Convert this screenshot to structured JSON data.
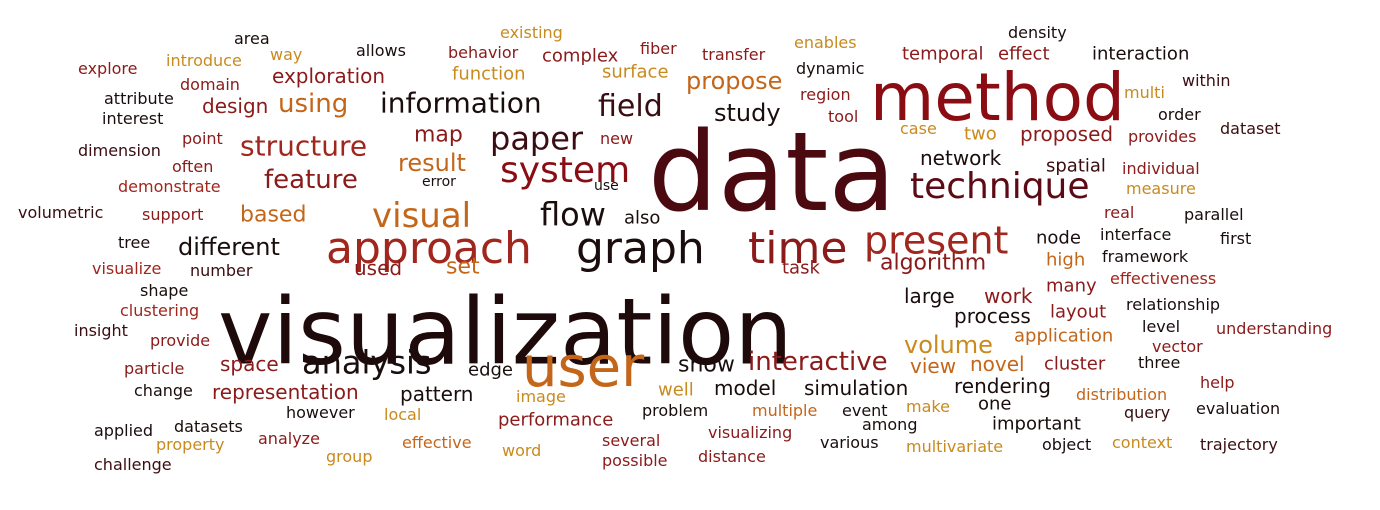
{
  "colors": {
    "black": "#1a0d0d",
    "darkbrown": "#3a0d12",
    "maroon": "#5c0a14",
    "red": "#8b1a1a",
    "crimson": "#a0261e",
    "orange": "#c4661a",
    "amber": "#c98a1e"
  },
  "words": [
    {
      "text": "data",
      "size": 110,
      "color": "#4a0a10"
    },
    {
      "text": "visualization",
      "size": 92,
      "color": "#1e0a0a"
    },
    {
      "text": "method",
      "size": 66,
      "color": "#8b0d14"
    },
    {
      "text": "user",
      "size": 56,
      "color": "#c4661a"
    },
    {
      "text": "approach",
      "size": 44,
      "color": "#a0261e"
    },
    {
      "text": "graph",
      "size": 44,
      "color": "#1a0d0d"
    },
    {
      "text": "time",
      "size": 44,
      "color": "#8b1a1a"
    },
    {
      "text": "present",
      "size": 38,
      "color": "#a0261e"
    },
    {
      "text": "technique",
      "size": 36,
      "color": "#5c0a14"
    },
    {
      "text": "system",
      "size": 36,
      "color": "#8b0d14"
    },
    {
      "text": "visual",
      "size": 34,
      "color": "#c4661a"
    },
    {
      "text": "paper",
      "size": 32,
      "color": "#3a0d12"
    },
    {
      "text": "analysis",
      "size": 32,
      "color": "#1a0d0d"
    },
    {
      "text": "flow",
      "size": 32,
      "color": "#1a0d0d"
    },
    {
      "text": "field",
      "size": 30,
      "color": "#3a0d12"
    },
    {
      "text": "information",
      "size": 28,
      "color": "#1a0d0d"
    },
    {
      "text": "structure",
      "size": 28,
      "color": "#a0261e"
    },
    {
      "text": "feature",
      "size": 26,
      "color": "#8b1a1a"
    },
    {
      "text": "using",
      "size": 26,
      "color": "#c4661a"
    },
    {
      "text": "interactive",
      "size": 26,
      "color": "#8b1a1a"
    },
    {
      "text": "result",
      "size": 24,
      "color": "#c4661a"
    },
    {
      "text": "different",
      "size": 24,
      "color": "#1a0d0d"
    },
    {
      "text": "study",
      "size": 24,
      "color": "#1a0d0d"
    },
    {
      "text": "volume",
      "size": 24,
      "color": "#c98a1e"
    },
    {
      "text": "propose",
      "size": 24,
      "color": "#c4661a"
    },
    {
      "text": "based",
      "size": 22,
      "color": "#c4661a"
    },
    {
      "text": "map",
      "size": 22,
      "color": "#8b1a1a"
    },
    {
      "text": "algorithm",
      "size": 22,
      "color": "#8b1a1a"
    },
    {
      "text": "show",
      "size": 22,
      "color": "#1a0d0d"
    },
    {
      "text": "set",
      "size": 22,
      "color": "#c4661a"
    },
    {
      "text": "space",
      "size": 20,
      "color": "#8b1a1a"
    },
    {
      "text": "model",
      "size": 20,
      "color": "#1a0d0d"
    },
    {
      "text": "representation",
      "size": 20,
      "color": "#8b1a1a"
    },
    {
      "text": "exploration",
      "size": 20,
      "color": "#8b1a1a"
    },
    {
      "text": "design",
      "size": 20,
      "color": "#8b1a1a"
    },
    {
      "text": "network",
      "size": 20,
      "color": "#1a0d0d"
    },
    {
      "text": "large",
      "size": 20,
      "color": "#1a0d0d"
    },
    {
      "text": "used",
      "size": 20,
      "color": "#8b1a1a"
    },
    {
      "text": "pattern",
      "size": 20,
      "color": "#1a0d0d"
    },
    {
      "text": "simulation",
      "size": 20,
      "color": "#1a0d0d"
    },
    {
      "text": "view",
      "size": 20,
      "color": "#c4661a"
    },
    {
      "text": "novel",
      "size": 20,
      "color": "#c4661a"
    },
    {
      "text": "work",
      "size": 20,
      "color": "#8b1a1a"
    },
    {
      "text": "process",
      "size": 20,
      "color": "#1a0d0d"
    },
    {
      "text": "rendering",
      "size": 20,
      "color": "#1a0d0d"
    },
    {
      "text": "cluster",
      "size": 18,
      "color": "#8b1a1a"
    },
    {
      "text": "proposed",
      "size": 20,
      "color": "#8b1a1a"
    },
    {
      "text": "node",
      "size": 18,
      "color": "#1a0d0d"
    },
    {
      "text": "task",
      "size": 18,
      "color": "#8b1a1a"
    },
    {
      "text": "two",
      "size": 18,
      "color": "#c98a1e"
    },
    {
      "text": "function",
      "size": 18,
      "color": "#c98a1e"
    },
    {
      "text": "surface",
      "size": 18,
      "color": "#c98a1e"
    },
    {
      "text": "application",
      "size": 18,
      "color": "#c4661a"
    },
    {
      "text": "layout",
      "size": 18,
      "color": "#8b1a1a"
    },
    {
      "text": "interaction",
      "size": 18,
      "color": "#1a0d0d"
    },
    {
      "text": "dynamic",
      "size": 16,
      "color": "#1a0d0d"
    },
    {
      "text": "temporal",
      "size": 18,
      "color": "#8b1a1a"
    },
    {
      "text": "effect",
      "size": 18,
      "color": "#8b1a1a"
    },
    {
      "text": "spatial",
      "size": 18,
      "color": "#3a0d12"
    },
    {
      "text": "many",
      "size": 18,
      "color": "#8b1a1a"
    },
    {
      "text": "high",
      "size": 18,
      "color": "#c4661a"
    },
    {
      "text": "interface",
      "size": 16,
      "color": "#1a0d0d"
    },
    {
      "text": "edge",
      "size": 18,
      "color": "#1a0d0d"
    },
    {
      "text": "well",
      "size": 18,
      "color": "#c98a1e"
    },
    {
      "text": "problem",
      "size": 16,
      "color": "#1a0d0d"
    },
    {
      "text": "performance",
      "size": 18,
      "color": "#8b1a1a"
    },
    {
      "text": "multiple",
      "size": 16,
      "color": "#c4661a"
    },
    {
      "text": "event",
      "size": 16,
      "color": "#1a0d0d"
    },
    {
      "text": "one",
      "size": 18,
      "color": "#1a0d0d"
    },
    {
      "text": "important",
      "size": 18,
      "color": "#1a0d0d"
    },
    {
      "text": "distribution",
      "size": 16,
      "color": "#c4661a"
    },
    {
      "text": "new",
      "size": 16,
      "color": "#8b1a1a"
    },
    {
      "text": "complex",
      "size": 18,
      "color": "#8b1a1a"
    },
    {
      "text": "behavior",
      "size": 16,
      "color": "#8b1a1a"
    },
    {
      "text": "fiber",
      "size": 16,
      "color": "#8b1a1a"
    },
    {
      "text": "transfer",
      "size": 16,
      "color": "#8b1a1a"
    },
    {
      "text": "enables",
      "size": 16,
      "color": "#c98a1e"
    },
    {
      "text": "existing",
      "size": 16,
      "color": "#c98a1e"
    },
    {
      "text": "allows",
      "size": 16,
      "color": "#1a0d0d"
    },
    {
      "text": "area",
      "size": 16,
      "color": "#1a0d0d"
    },
    {
      "text": "way",
      "size": 16,
      "color": "#c98a1e"
    },
    {
      "text": "introduce",
      "size": 16,
      "color": "#c98a1e"
    },
    {
      "text": "domain",
      "size": 16,
      "color": "#8b1a1a"
    },
    {
      "text": "explore",
      "size": 16,
      "color": "#8b1a1a"
    },
    {
      "text": "attribute",
      "size": 16,
      "color": "#1a0d0d"
    },
    {
      "text": "interest",
      "size": 16,
      "color": "#1a0d0d"
    },
    {
      "text": "point",
      "size": 16,
      "color": "#8b1a1a"
    },
    {
      "text": "dimension",
      "size": 16,
      "color": "#3a0d12"
    },
    {
      "text": "often",
      "size": 16,
      "color": "#8b1a1a"
    },
    {
      "text": "demonstrate",
      "size": 16,
      "color": "#a0261e"
    },
    {
      "text": "error",
      "size": 14,
      "color": "#1a0d0d"
    },
    {
      "text": "use",
      "size": 14,
      "color": "#1a0d0d"
    },
    {
      "text": "also",
      "size": 18,
      "color": "#1a0d0d"
    },
    {
      "text": "volumetric",
      "size": 16,
      "color": "#3a0d12"
    },
    {
      "text": "support",
      "size": 16,
      "color": "#8b1a1a"
    },
    {
      "text": "tree",
      "size": 16,
      "color": "#1a0d0d"
    },
    {
      "text": "visualize",
      "size": 16,
      "color": "#a0261e"
    },
    {
      "text": "number",
      "size": 16,
      "color": "#3a0d12"
    },
    {
      "text": "shape",
      "size": 16,
      "color": "#1a0d0d"
    },
    {
      "text": "clustering",
      "size": 16,
      "color": "#a0261e"
    },
    {
      "text": "insight",
      "size": 16,
      "color": "#3a0d12"
    },
    {
      "text": "provide",
      "size": 16,
      "color": "#8b1a1a"
    },
    {
      "text": "particle",
      "size": 16,
      "color": "#8b1a1a"
    },
    {
      "text": "change",
      "size": 16,
      "color": "#1a0d0d"
    },
    {
      "text": "applied",
      "size": 16,
      "color": "#1a0d0d"
    },
    {
      "text": "datasets",
      "size": 16,
      "color": "#1a0d0d"
    },
    {
      "text": "property",
      "size": 16,
      "color": "#c98a1e"
    },
    {
      "text": "challenge",
      "size": 16,
      "color": "#3a0d12"
    },
    {
      "text": "analyze",
      "size": 16,
      "color": "#8b1a1a"
    },
    {
      "text": "group",
      "size": 16,
      "color": "#c98a1e"
    },
    {
      "text": "however",
      "size": 16,
      "color": "#1a0d0d"
    },
    {
      "text": "local",
      "size": 16,
      "color": "#c98a1e"
    },
    {
      "text": "effective",
      "size": 16,
      "color": "#c4661a"
    },
    {
      "text": "image",
      "size": 16,
      "color": "#c98a1e"
    },
    {
      "text": "word",
      "size": 16,
      "color": "#c98a1e"
    },
    {
      "text": "several",
      "size": 16,
      "color": "#8b1a1a"
    },
    {
      "text": "possible",
      "size": 16,
      "color": "#8b1a1a"
    },
    {
      "text": "visualizing",
      "size": 16,
      "color": "#8b1a1a"
    },
    {
      "text": "distance",
      "size": 16,
      "color": "#8b1a1a"
    },
    {
      "text": "various",
      "size": 16,
      "color": "#1a0d0d"
    },
    {
      "text": "among",
      "size": 16,
      "color": "#1a0d0d"
    },
    {
      "text": "make",
      "size": 16,
      "color": "#c98a1e"
    },
    {
      "text": "multivariate",
      "size": 16,
      "color": "#c98a1e"
    },
    {
      "text": "object",
      "size": 16,
      "color": "#1a0d0d"
    },
    {
      "text": "context",
      "size": 16,
      "color": "#c98a1e"
    },
    {
      "text": "query",
      "size": 16,
      "color": "#3a0d12"
    },
    {
      "text": "trajectory",
      "size": 16,
      "color": "#3a0d12"
    },
    {
      "text": "evaluation",
      "size": 16,
      "color": "#1a0d0d"
    },
    {
      "text": "help",
      "size": 16,
      "color": "#8b1a1a"
    },
    {
      "text": "three",
      "size": 16,
      "color": "#1a0d0d"
    },
    {
      "text": "vector",
      "size": 16,
      "color": "#8b1a1a"
    },
    {
      "text": "level",
      "size": 16,
      "color": "#1a0d0d"
    },
    {
      "text": "understanding",
      "size": 16,
      "color": "#8b1a1a"
    },
    {
      "text": "relationship",
      "size": 16,
      "color": "#1a0d0d"
    },
    {
      "text": "effectiveness",
      "size": 16,
      "color": "#a0261e"
    },
    {
      "text": "framework",
      "size": 16,
      "color": "#1a0d0d"
    },
    {
      "text": "first",
      "size": 16,
      "color": "#1a0d0d"
    },
    {
      "text": "parallel",
      "size": 16,
      "color": "#1a0d0d"
    },
    {
      "text": "real",
      "size": 16,
      "color": "#8b1a1a"
    },
    {
      "text": "measure",
      "size": 16,
      "color": "#c98a1e"
    },
    {
      "text": "individual",
      "size": 16,
      "color": "#8b1a1a"
    },
    {
      "text": "dataset",
      "size": 16,
      "color": "#3a0d12"
    },
    {
      "text": "provides",
      "size": 16,
      "color": "#8b1a1a"
    },
    {
      "text": "order",
      "size": 16,
      "color": "#1a0d0d"
    },
    {
      "text": "multi",
      "size": 16,
      "color": "#c98a1e"
    },
    {
      "text": "within",
      "size": 16,
      "color": "#3a0d12"
    },
    {
      "text": "density",
      "size": 16,
      "color": "#1a0d0d"
    },
    {
      "text": "region",
      "size": 16,
      "color": "#8b1a1a"
    },
    {
      "text": "tool",
      "size": 16,
      "color": "#8b1a1a"
    },
    {
      "text": "case",
      "size": 16,
      "color": "#c98a1e"
    }
  ]
}
